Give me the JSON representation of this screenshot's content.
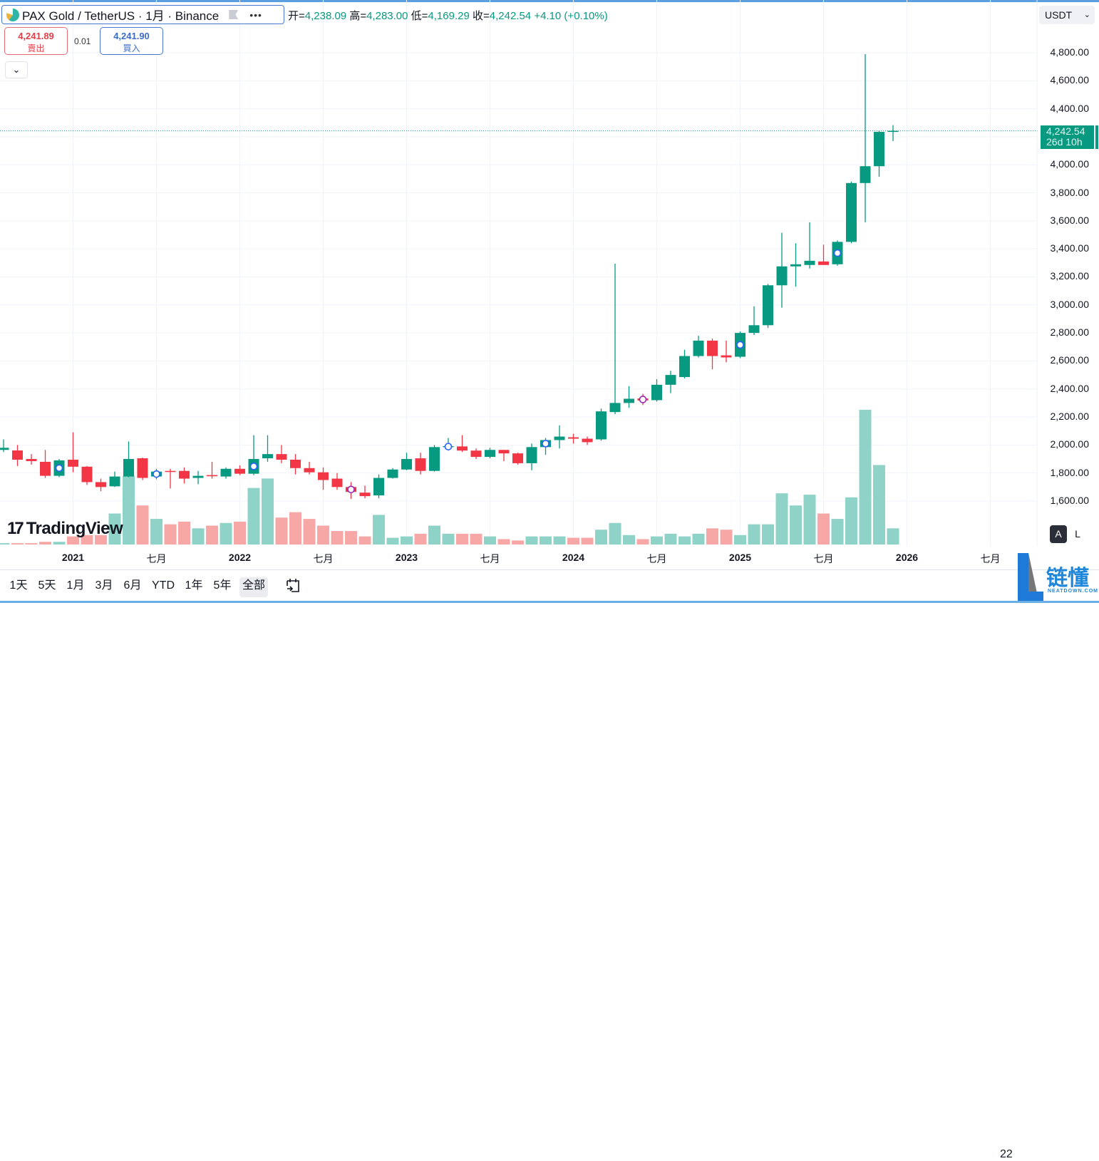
{
  "legend": {
    "symbol": "PAX Gold / TetherUS · 1月 · Binance",
    "more_label": "•••",
    "open_key": "开=",
    "open": "4,238.09",
    "high_key": "高=",
    "high": "4,283.00",
    "low_key": "低=",
    "low": "4,169.29",
    "close_key": "收=",
    "close": "4,242.54",
    "change": "+4.10 (+0.10%)"
  },
  "trade": {
    "sell_price": "4,241.89",
    "sell_label": "賣出",
    "spread": "0.01",
    "buy_price": "4,241.90",
    "buy_label": "買入",
    "collapse_icon": "⌄"
  },
  "price_axis": {
    "currency": "USDT",
    "ticks": [
      "4,800.00",
      "4,600.00",
      "4,400.00",
      "4,000.00",
      "3,800.00",
      "3,600.00",
      "3,400.00",
      "3,200.00",
      "3,000.00",
      "2,800.00",
      "2,600.00",
      "2,400.00",
      "2,200.00",
      "2,000.00",
      "1,800.00",
      "1,600.00"
    ],
    "last_price": "4,242.54",
    "countdown": "26d 10h",
    "auto_label": "A",
    "log_label": "L"
  },
  "time_axis": [
    {
      "label": "2021",
      "year": true,
      "month": "2021-01"
    },
    {
      "label": "七月",
      "year": false,
      "month": "2021-07"
    },
    {
      "label": "2022",
      "year": true,
      "month": "2022-01"
    },
    {
      "label": "七月",
      "year": false,
      "month": "2022-07"
    },
    {
      "label": "2023",
      "year": true,
      "month": "2023-01"
    },
    {
      "label": "七月",
      "year": false,
      "month": "2023-07"
    },
    {
      "label": "2024",
      "year": true,
      "month": "2024-01"
    },
    {
      "label": "七月",
      "year": false,
      "month": "2024-07"
    },
    {
      "label": "2025",
      "year": true,
      "month": "2025-01"
    },
    {
      "label": "七月",
      "year": false,
      "month": "2025-07"
    },
    {
      "label": "2026",
      "year": true,
      "month": "2026-01"
    },
    {
      "label": "七月",
      "year": false,
      "month": "2026-07"
    }
  ],
  "toolbar": {
    "ranges": [
      "1天",
      "5天",
      "1月",
      "3月",
      "6月",
      "YTD",
      "1年",
      "5年",
      "全部"
    ],
    "active_range": "全部",
    "time_edge": "22"
  },
  "branding": {
    "tradingview": "TradingView",
    "watermark_cn": "链懂",
    "watermark_en": "NEATDOWN.COM"
  },
  "colors": {
    "up": "#089981",
    "down": "#f23645",
    "vol_up": "#8fd3c8",
    "vol_down": "#f7a8a6",
    "marker_blue": "#2962ff",
    "marker_purple": "#9c27b0"
  },
  "chart_data": {
    "type": "candlestick",
    "interval": "1月",
    "ylim": [
      1500,
      4900
    ],
    "columns": [
      "month",
      "open",
      "high",
      "low",
      "close",
      "volume_rel"
    ],
    "candles": [
      [
        "2020-08",
        1965,
        2040,
        1950,
        1980,
        1
      ],
      [
        "2020-09",
        1961,
        2000,
        1850,
        1895,
        1
      ],
      [
        "2020-10",
        1900,
        1935,
        1860,
        1885,
        1
      ],
      [
        "2020-11",
        1880,
        1965,
        1765,
        1780,
        2
      ],
      [
        "2020-12",
        1780,
        1900,
        1770,
        1890,
        2
      ],
      [
        "2021-01",
        1895,
        2090,
        1805,
        1845,
        6
      ],
      [
        "2021-02",
        1845,
        1850,
        1715,
        1735,
        7
      ],
      [
        "2021-03",
        1735,
        1760,
        1670,
        1700,
        7
      ],
      [
        "2021-04",
        1705,
        1810,
        1700,
        1775,
        23
      ],
      [
        "2021-05",
        1775,
        2025,
        1770,
        1900,
        51
      ],
      [
        "2021-06",
        1905,
        1910,
        1750,
        1765,
        29
      ],
      [
        "2021-07",
        1775,
        1830,
        1755,
        1810,
        19
      ],
      [
        "2021-08",
        1815,
        1830,
        1690,
        1812,
        15
      ],
      [
        "2021-09",
        1815,
        1840,
        1725,
        1760,
        17
      ],
      [
        "2021-10",
        1765,
        1815,
        1720,
        1780,
        12
      ],
      [
        "2021-11",
        1785,
        1880,
        1760,
        1777,
        14
      ],
      [
        "2021-12",
        1775,
        1840,
        1760,
        1830,
        16
      ],
      [
        "2022-01",
        1830,
        1855,
        1785,
        1795,
        17
      ],
      [
        "2022-02",
        1795,
        2070,
        1785,
        1900,
        42
      ],
      [
        "2022-03",
        1905,
        2070,
        1880,
        1935,
        49
      ],
      [
        "2022-04",
        1935,
        2000,
        1870,
        1895,
        20
      ],
      [
        "2022-05",
        1895,
        1935,
        1790,
        1835,
        24
      ],
      [
        "2022-06",
        1835,
        1880,
        1790,
        1805,
        19
      ],
      [
        "2022-07",
        1805,
        1840,
        1680,
        1750,
        14
      ],
      [
        "2022-08",
        1760,
        1800,
        1680,
        1700,
        10
      ],
      [
        "2022-09",
        1700,
        1735,
        1615,
        1665,
        10
      ],
      [
        "2022-10",
        1660,
        1710,
        1620,
        1635,
        6
      ],
      [
        "2022-11",
        1640,
        1790,
        1620,
        1765,
        22
      ],
      [
        "2022-12",
        1765,
        1835,
        1760,
        1825,
        5
      ],
      [
        "2023-01",
        1825,
        1945,
        1820,
        1900,
        6
      ],
      [
        "2023-02",
        1905,
        1945,
        1790,
        1815,
        8
      ],
      [
        "2023-03",
        1815,
        2000,
        1810,
        1985,
        14
      ],
      [
        "2023-04",
        1985,
        2050,
        1960,
        1992,
        8
      ],
      [
        "2023-05",
        1990,
        2070,
        1950,
        1960,
        8
      ],
      [
        "2023-06",
        1960,
        1975,
        1900,
        1915,
        8
      ],
      [
        "2023-07",
        1915,
        1980,
        1905,
        1965,
        6
      ],
      [
        "2023-08",
        1965,
        1965,
        1885,
        1940,
        4
      ],
      [
        "2023-09",
        1940,
        1945,
        1860,
        1870,
        3
      ],
      [
        "2023-10",
        1870,
        2010,
        1820,
        1985,
        6
      ],
      [
        "2023-11",
        1985,
        2050,
        1930,
        2035,
        6
      ],
      [
        "2023-12",
        2035,
        2140,
        1975,
        2060,
        6
      ],
      [
        "2024-01",
        2055,
        2080,
        2010,
        2045,
        5
      ],
      [
        "2024-02",
        2045,
        2060,
        2000,
        2020,
        5
      ],
      [
        "2024-03",
        2040,
        2260,
        2030,
        2240,
        11
      ],
      [
        "2024-04",
        2235,
        3294,
        2220,
        2300,
        16
      ],
      [
        "2024-05",
        2300,
        2420,
        2265,
        2330,
        7
      ],
      [
        "2024-06",
        2332,
        2365,
        2285,
        2318,
        4
      ],
      [
        "2024-07",
        2320,
        2470,
        2310,
        2430,
        6
      ],
      [
        "2024-08",
        2430,
        2530,
        2370,
        2500,
        8
      ],
      [
        "2024-09",
        2485,
        2680,
        2475,
        2635,
        6
      ],
      [
        "2024-10",
        2635,
        2780,
        2625,
        2745,
        8
      ],
      [
        "2024-11",
        2745,
        2760,
        2540,
        2635,
        12
      ],
      [
        "2024-12",
        2640,
        2745,
        2590,
        2625,
        11
      ],
      [
        "2025-01",
        2630,
        2810,
        2620,
        2800,
        7
      ],
      [
        "2025-02",
        2800,
        2990,
        2785,
        2855,
        15
      ],
      [
        "2025-03",
        2855,
        3150,
        2835,
        3140,
        15
      ],
      [
        "2025-04",
        3140,
        3515,
        2980,
        3275,
        38
      ],
      [
        "2025-05",
        3275,
        3440,
        3130,
        3290,
        29
      ],
      [
        "2025-06",
        3285,
        3590,
        3260,
        3315,
        37
      ],
      [
        "2025-07",
        3310,
        3430,
        3285,
        3285,
        23
      ],
      [
        "2025-08",
        3290,
        3460,
        3280,
        3450,
        19
      ],
      [
        "2025-09",
        3450,
        3880,
        3440,
        3870,
        35
      ],
      [
        "2025-10",
        3870,
        4790,
        3590,
        3990,
        100
      ],
      [
        "2025-11",
        3990,
        4245,
        3915,
        4235,
        59
      ],
      [
        "2025-12",
        4238.09,
        4283.0,
        4169.29,
        4242.54,
        12
      ]
    ],
    "event_markers": [
      {
        "month": "2020-12",
        "color": "blue"
      },
      {
        "month": "2021-07",
        "color": "blue"
      },
      {
        "month": "2022-02",
        "color": "blue"
      },
      {
        "month": "2022-09",
        "color": "purple"
      },
      {
        "month": "2023-04",
        "color": "blue"
      },
      {
        "month": "2023-11",
        "color": "blue"
      },
      {
        "month": "2024-06",
        "color": "purple"
      },
      {
        "month": "2025-01",
        "color": "blue"
      },
      {
        "month": "2025-08",
        "color": "blue"
      }
    ],
    "last_price_line": 4242.54,
    "grid": true
  }
}
